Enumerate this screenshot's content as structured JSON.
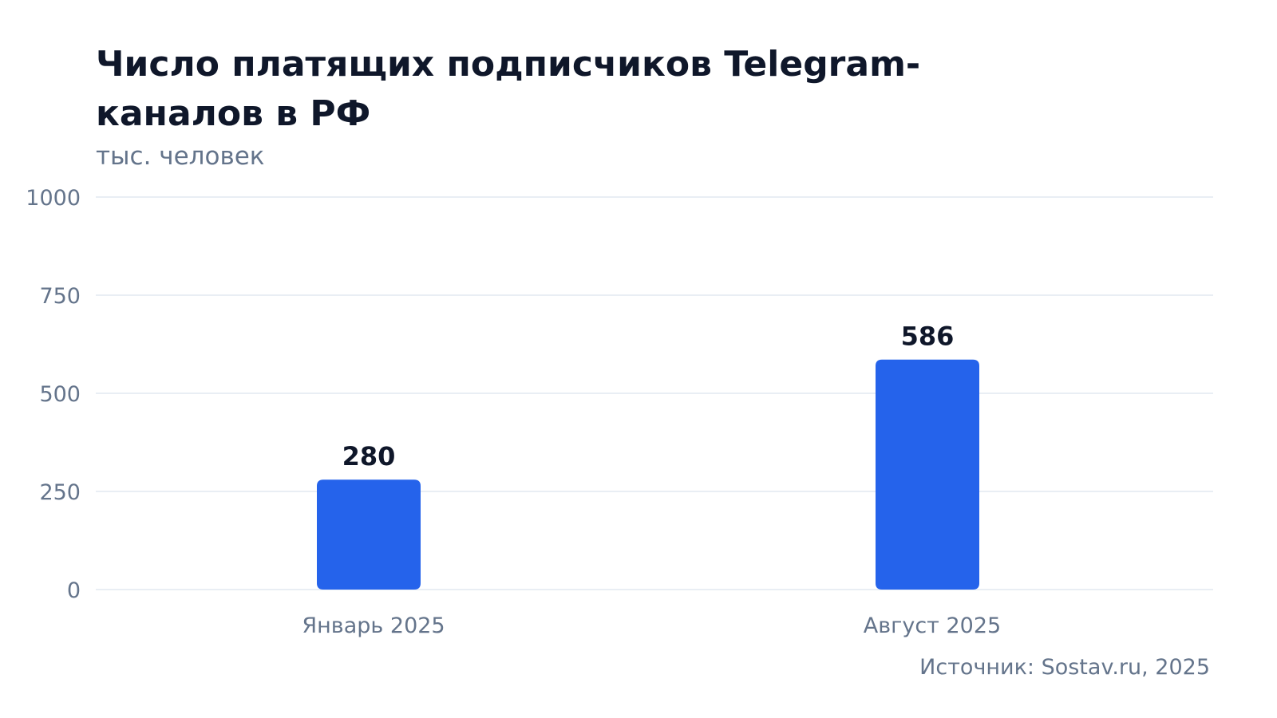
{
  "chart_data": {
    "type": "bar",
    "title": "Число платящих подписчиков Telegram-каналов в РФ",
    "subtitle": "тыс. человек",
    "categories": [
      "Январь 2025",
      "Август 2025"
    ],
    "values": [
      280,
      586
    ],
    "ylim": [
      0,
      1000
    ],
    "yticks": [
      "0",
      "250",
      "500",
      "750",
      "1000"
    ],
    "grid": true,
    "bar_color": "#2563eb",
    "source": "Источник: Sostav.ru, 2025"
  }
}
